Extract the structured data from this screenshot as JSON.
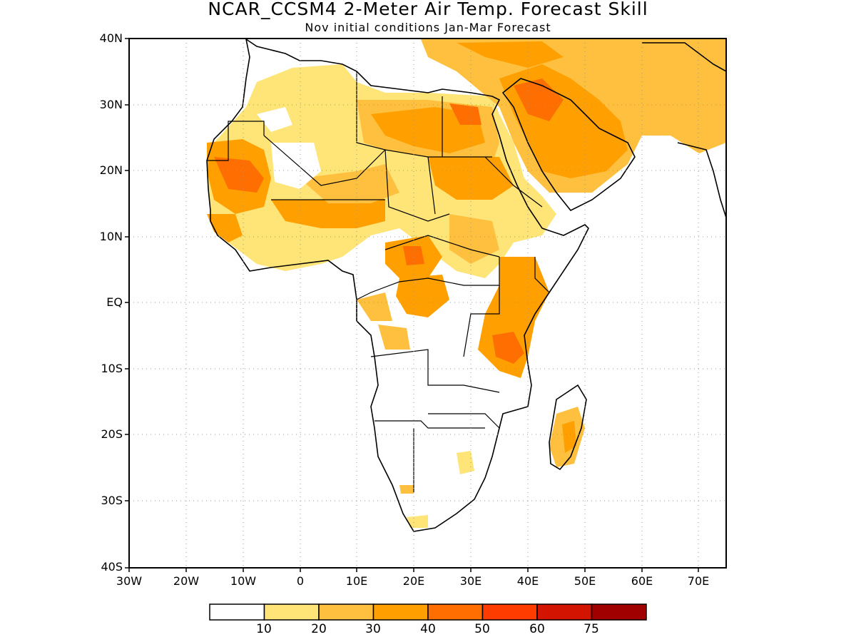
{
  "title": "NCAR_CCSM4 2-Meter Air Temp. Forecast Skill",
  "subtitle": "Nov initial conditions  Jan-Mar Forecast",
  "lat_labels": [
    "40N",
    "30N",
    "20N",
    "10N",
    "EQ",
    "10S",
    "20S",
    "30S",
    "40S"
  ],
  "lon_labels": [
    "30W",
    "20W",
    "10W",
    "0",
    "10E",
    "20E",
    "30E",
    "40E",
    "50E",
    "60E",
    "70E"
  ],
  "colorbar": {
    "colors": [
      "#ffffff",
      "#ffe478",
      "#ffc040",
      "#ffa000",
      "#ff6e00",
      "#ff3c00",
      "#d21400",
      "#a00000"
    ],
    "labels": [
      "10",
      "20",
      "30",
      "40",
      "50",
      "60",
      "75"
    ]
  },
  "map": {
    "lat_range": [
      -40,
      40
    ],
    "lon_range": [
      -30,
      75
    ],
    "grid": "dotted",
    "land_color": "#ffffff",
    "border_color": "#000000"
  }
}
